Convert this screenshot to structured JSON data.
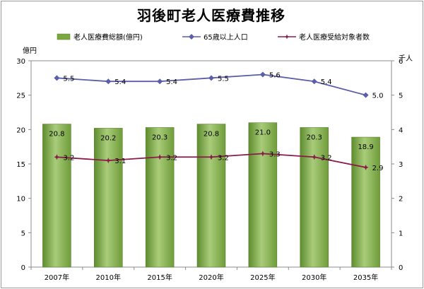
{
  "chart_data": {
    "type": "bar",
    "title": "羽後町老人医療費推移",
    "categories": [
      "2007年",
      "2010年",
      "2015年",
      "2020年",
      "2025年",
      "2030年",
      "2035年"
    ],
    "series": [
      {
        "name": "老人医療費総額(億円)",
        "kind": "bar",
        "axis": "left",
        "color": "#7aa83e",
        "values": [
          20.8,
          20.2,
          20.3,
          20.8,
          21.0,
          20.3,
          18.9
        ],
        "labels": [
          "20.8",
          "20.2",
          "20.3",
          "20.8",
          "21.0",
          "20.3",
          "18.9"
        ]
      },
      {
        "name": "65歳以上人口",
        "kind": "line",
        "axis": "right",
        "color": "#5a5fa8",
        "marker": "diamond",
        "values": [
          5.5,
          5.4,
          5.4,
          5.5,
          5.6,
          5.4,
          5.0
        ],
        "labels": [
          "5.5",
          "5.4",
          "5.4",
          "5.5",
          "5.6",
          "5.4",
          "5.0"
        ]
      },
      {
        "name": "老人医療受給対象者数",
        "kind": "line",
        "axis": "right",
        "color": "#8b1a4a",
        "marker": "star",
        "values": [
          3.2,
          3.1,
          3.2,
          3.2,
          3.3,
          3.2,
          2.9
        ],
        "labels": [
          "3.2",
          "3.1",
          "3.2",
          "3.2",
          "3.3",
          "3.2",
          "2.9"
        ]
      }
    ],
    "y_left": {
      "unit": "億円",
      "ylim": [
        0,
        30
      ],
      "ticks": [
        "0",
        "5",
        "10",
        "15",
        "20",
        "25",
        "30"
      ]
    },
    "y_right": {
      "unit": "千人",
      "ylim": [
        0,
        6
      ],
      "ticks": [
        "0",
        "1",
        "2",
        "3",
        "4",
        "5",
        "6"
      ]
    },
    "grid": false,
    "legend_position": "top"
  }
}
